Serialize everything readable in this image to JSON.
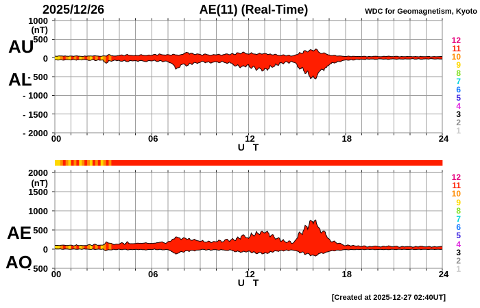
{
  "header": {
    "date": "2025/12/26",
    "title": "AE(11) (Real-Time)",
    "credit": "WDC for Geomagnetism, Kyoto"
  },
  "footer": {
    "created": "[Created at 2025-12-27 02:40UT]"
  },
  "station_scale": {
    "values": [
      "12",
      "11",
      "10",
      "9",
      "8",
      "7",
      "6",
      "5",
      "4",
      "3",
      "2",
      "1"
    ],
    "colors": {
      "12": "#E6007E",
      "11": "#FF1E00",
      "10": "#FF8C00",
      "9": "#FFD800",
      "8": "#84E028",
      "7": "#00D2DC",
      "6": "#1478FF",
      "5": "#4128E0",
      "4": "#E02CE0",
      "3": "#000000",
      "2": "#8C8C8C",
      "1": "#C8C8C8"
    }
  },
  "station_counts": [
    9,
    9,
    10,
    11,
    10,
    9,
    11,
    10,
    11,
    9,
    10,
    11,
    10,
    9,
    11,
    10,
    11,
    9,
    10,
    11,
    10,
    11,
    11,
    11,
    11,
    11,
    11,
    11,
    11,
    11,
    11,
    11,
    11,
    11,
    11,
    11,
    11,
    11,
    11,
    11,
    11,
    11,
    11,
    11,
    11,
    11,
    11,
    11,
    11,
    11,
    11,
    11,
    11,
    11,
    11,
    11,
    11,
    11,
    11,
    11,
    11,
    11,
    11,
    11,
    11,
    11,
    11,
    11,
    11,
    11,
    11,
    11,
    11,
    11,
    11,
    11,
    11,
    11,
    11,
    11,
    11,
    11,
    11,
    11,
    11,
    11,
    11,
    11,
    11,
    11,
    11,
    11,
    11,
    11,
    11,
    11,
    11,
    11,
    11,
    11,
    11,
    11,
    11,
    11,
    11,
    11,
    11,
    11,
    11,
    11,
    11,
    11,
    11,
    11,
    11,
    11,
    11,
    11,
    11,
    11,
    11,
    11,
    11,
    11,
    11,
    11,
    11,
    11,
    11,
    11,
    11,
    11,
    11,
    11,
    11,
    11,
    11,
    11,
    11,
    11,
    11,
    11,
    11,
    11,
    11
  ],
  "chart_data": [
    {
      "type": "area",
      "title": "AU/AL band",
      "ylabel": "(nT)",
      "xlabel": "U T",
      "ylim": [
        -2000,
        1000
      ],
      "yticks": [
        "1000",
        "500",
        "0",
        "- 500",
        "- 1000",
        "- 1500",
        "- 2000"
      ],
      "xticks": [
        "00",
        "06",
        "12",
        "18",
        "24"
      ],
      "xtick_hours": [
        0,
        6,
        12,
        18,
        24
      ],
      "x_start_hour": 0,
      "x_end_hour": 24,
      "x_step_minutes": 10,
      "grid": true,
      "series": [
        {
          "name": "AU",
          "values": [
            50,
            45,
            55,
            48,
            52,
            46,
            50,
            44,
            56,
            48,
            42,
            52,
            46,
            55,
            48,
            60,
            50,
            45,
            55,
            48,
            90,
            60,
            52,
            58,
            65,
            80,
            60,
            95,
            70,
            62,
            75,
            60,
            88,
            70,
            64,
            80,
            70,
            95,
            75,
            110,
            85,
            70,
            90,
            75,
            100,
            80,
            70,
            90,
            120,
            150,
            100,
            130,
            90,
            110,
            95,
            75,
            105,
            85,
            70,
            90,
            80,
            100,
            70,
            90,
            110,
            85,
            120,
            90,
            140,
            110,
            160,
            120,
            100,
            140,
            110,
            90,
            130,
            100,
            120,
            90,
            110,
            80,
            100,
            70,
            60,
            85,
            55,
            75,
            50,
            65,
            90,
            150,
            120,
            200,
            160,
            220,
            180,
            240,
            160,
            120,
            140,
            100,
            80,
            60,
            70,
            50,
            55,
            45,
            40,
            50,
            35,
            45,
            38,
            42,
            35,
            45,
            30,
            40,
            35,
            45,
            40,
            32,
            44,
            36,
            48,
            38,
            35,
            45,
            30,
            42,
            34,
            40,
            38,
            30,
            42,
            32,
            44,
            36,
            35,
            42,
            30,
            40,
            34,
            38,
            40
          ]
        },
        {
          "name": "AL",
          "values": [
            -45,
            -55,
            -40,
            -60,
            -45,
            -50,
            -55,
            -42,
            -60,
            -45,
            -55,
            -40,
            -50,
            -65,
            -45,
            -70,
            -50,
            -60,
            -55,
            -140,
            -70,
            -90,
            -60,
            -75,
            -65,
            -90,
            -60,
            -100,
            -70,
            -80,
            -70,
            -95,
            -65,
            -85,
            -100,
            -70,
            -80,
            -60,
            -95,
            -70,
            -105,
            -80,
            -100,
            -130,
            -180,
            -300,
            -260,
            -180,
            -160,
            -220,
            -140,
            -180,
            -120,
            -150,
            -120,
            -90,
            -130,
            -100,
            -140,
            -110,
            -100,
            -130,
            -90,
            -120,
            -150,
            -110,
            -160,
            -220,
            -180,
            -260,
            -200,
            -240,
            -180,
            -280,
            -220,
            -330,
            -260,
            -350,
            -280,
            -330,
            -200,
            -250,
            -160,
            -200,
            -120,
            -160,
            -100,
            -140,
            -90,
            -120,
            -180,
            -300,
            -250,
            -420,
            -350,
            -550,
            -480,
            -560,
            -380,
            -300,
            -340,
            -250,
            -180,
            -120,
            -140,
            -90,
            -100,
            -70,
            -50,
            -60,
            -40,
            -55,
            -35,
            -45,
            -30,
            -40,
            -25,
            -35,
            -28,
            -38,
            -30,
            -24,
            -36,
            -26,
            -38,
            -28,
            -25,
            -35,
            -22,
            -32,
            -24,
            -30,
            -28,
            -20,
            -32,
            -22,
            -34,
            -26,
            -25,
            -32,
            -20,
            -30,
            -24,
            -28,
            -30
          ]
        }
      ]
    },
    {
      "type": "area",
      "title": "AE/AO band",
      "ylabel": "(nT)",
      "xlabel": "U T",
      "ylim": [
        -500,
        2000
      ],
      "yticks": [
        "2000",
        "1500",
        "1000",
        "500",
        "0",
        "- 500"
      ],
      "xticks": [
        "00",
        "06",
        "12",
        "18",
        "24"
      ],
      "xtick_hours": [
        0,
        6,
        12,
        18,
        24
      ],
      "x_start_hour": 0,
      "x_end_hour": 24,
      "x_step_minutes": 10,
      "grid": true,
      "series": [
        {
          "name": "AE",
          "values": [
            95,
            100,
            95,
            108,
            97,
            96,
            105,
            86,
            116,
            93,
            97,
            92,
            96,
            120,
            93,
            130,
            100,
            105,
            110,
            188,
            160,
            150,
            112,
            133,
            130,
            170,
            120,
            195,
            140,
            142,
            145,
            155,
            153,
            155,
            164,
            150,
            150,
            155,
            170,
            180,
            190,
            150,
            190,
            205,
            260,
            320,
            300,
            250,
            300,
            250,
            280,
            230,
            260,
            220,
            200,
            230,
            180,
            210,
            170,
            200,
            190,
            240,
            180,
            220,
            260,
            200,
            280,
            220,
            320,
            260,
            380,
            300,
            280,
            420,
            340,
            460,
            380,
            470,
            420,
            470,
            320,
            380,
            260,
            300,
            200,
            250,
            170,
            220,
            150,
            190,
            280,
            450,
            380,
            620,
            520,
            750,
            660,
            760,
            560,
            420,
            480,
            350,
            260,
            180,
            210,
            140,
            155,
            115,
            90,
            110,
            75,
            100,
            73,
            87,
            65,
            85,
            55,
            75,
            63,
            83,
            70,
            56,
            80,
            62,
            86,
            66,
            60,
            80,
            52,
            74,
            58,
            70,
            66,
            50,
            74,
            54,
            78,
            62,
            60,
            74,
            50,
            70,
            58,
            66,
            70
          ]
        },
        {
          "name": "AO",
          "values": [
            10,
            5,
            12,
            -5,
            8,
            0,
            -3,
            8,
            -6,
            5,
            -8,
            10,
            0,
            -8,
            5,
            -10,
            2,
            -6,
            3,
            -40,
            -15,
            -20,
            -5,
            -12,
            0,
            -15,
            -5,
            -20,
            -10,
            -15,
            -5,
            -18,
            -8,
            -15,
            -20,
            -8,
            -10,
            5,
            -15,
            -5,
            -20,
            -10,
            -15,
            -35,
            -90,
            -130,
            -100,
            -60,
            -80,
            -40,
            -60,
            -30,
            -50,
            -25,
            -20,
            -5,
            -25,
            -10,
            -30,
            -15,
            -15,
            -30,
            -10,
            -25,
            -35,
            -18,
            -40,
            -70,
            -45,
            -85,
            -55,
            -75,
            -50,
            -95,
            -60,
            -120,
            -80,
            -125,
            -90,
            -115,
            -55,
            -80,
            -40,
            -60,
            -30,
            -50,
            -20,
            -40,
            -18,
            -35,
            -50,
            -100,
            -70,
            -140,
            -110,
            -175,
            -150,
            -180,
            -120,
            -90,
            -110,
            -75,
            -55,
            -35,
            -45,
            -25,
            -30,
            -18,
            -10,
            -18,
            -8,
            -15,
            -6,
            -12,
            -5,
            -12,
            -3,
            -10,
            -6,
            -14,
            -8,
            -4,
            -12,
            -5,
            -14,
            -6,
            -5,
            -12,
            -3,
            -10,
            -4,
            -9,
            -7,
            -2,
            -11,
            -4,
            -12,
            -6,
            -5,
            -11,
            -2,
            -9,
            -4,
            -8,
            -6
          ]
        }
      ]
    }
  ]
}
